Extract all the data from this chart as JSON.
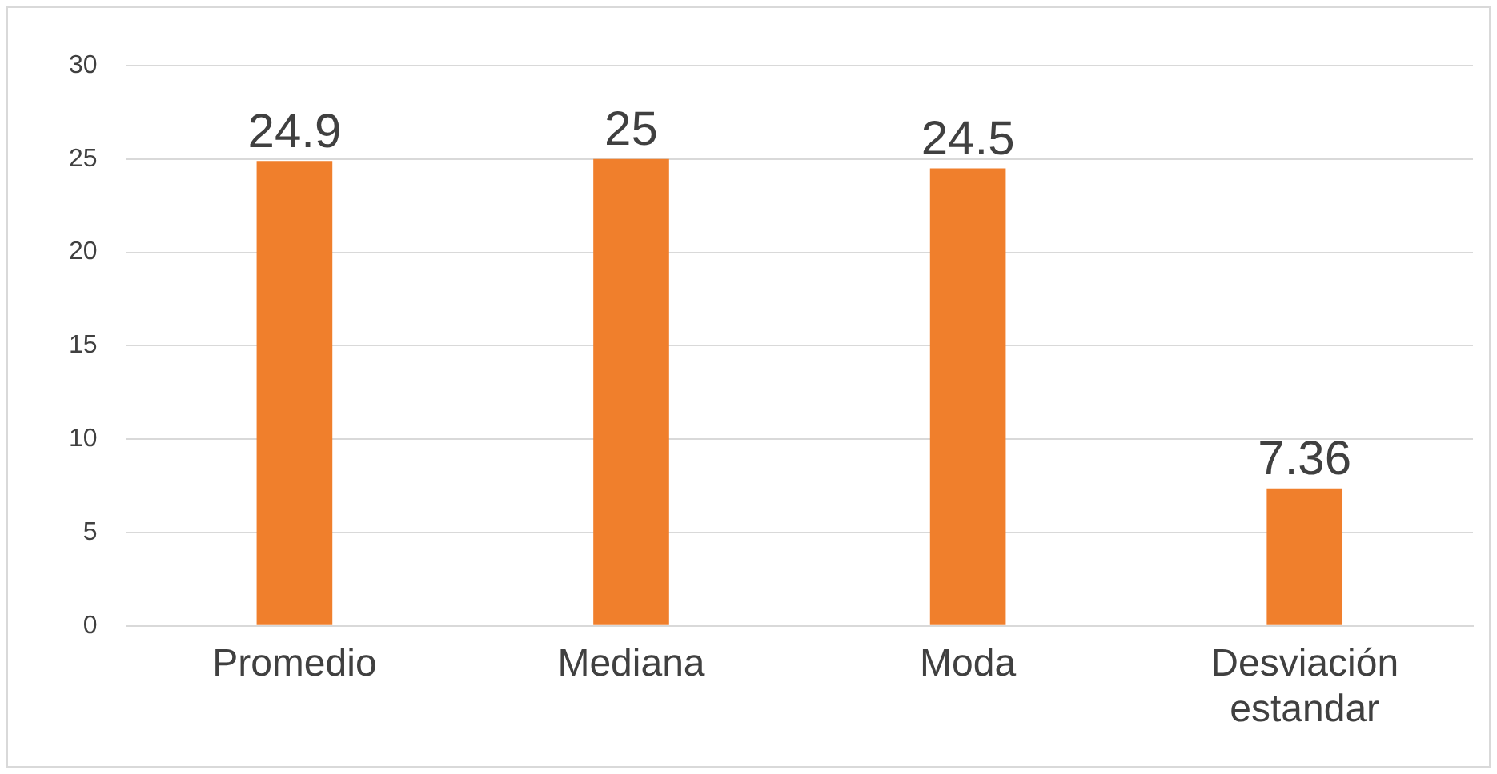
{
  "chart_data": {
    "type": "bar",
    "categories": [
      "Promedio",
      "Mediana",
      "Moda",
      "Desviación estandar"
    ],
    "values": [
      24.9,
      25,
      24.5,
      7.36
    ],
    "color": "#f07f2c",
    "ylim": [
      0,
      30
    ],
    "yticks": [
      0,
      5,
      10,
      15,
      20,
      25,
      30
    ],
    "grid": "y",
    "data_labels": true
  }
}
